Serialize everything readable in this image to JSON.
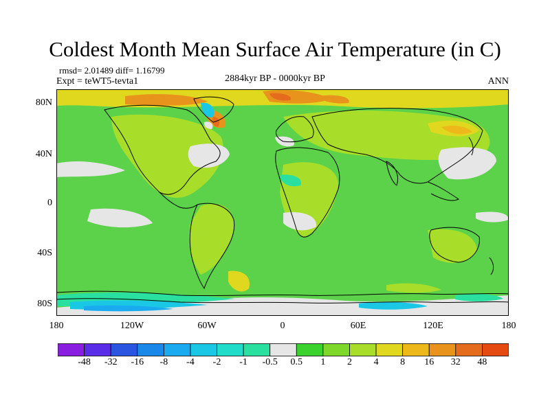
{
  "title": "Coldest Month Mean Surface Air Temperature (in C)",
  "stats_line": "rmsd= 2.01489 diff= 1.16799",
  "expt_line": "Expt = teWT5-tevta1",
  "period": "2884kyr BP - 0000kyr BP",
  "season": "ANN",
  "y_axis_labels": [
    "80N",
    "40N",
    "0",
    "40S",
    "80S"
  ],
  "x_axis_labels": [
    "180",
    "120W",
    "60W",
    "0",
    "60E",
    "120E",
    "180"
  ],
  "colorbar": {
    "colors": [
      "#8a1ee0",
      "#5a2ee8",
      "#2a55e0",
      "#1a88e8",
      "#1aaaf0",
      "#1ac8e6",
      "#20dcc8",
      "#2ae0a0",
      "#e6e6e6",
      "#3cd22e",
      "#7ed82a",
      "#a8de2a",
      "#dfd81e",
      "#ecb81a",
      "#e8941c",
      "#e46c1c",
      "#e44a12"
    ],
    "labels": [
      "-48",
      "-32",
      "-16",
      "-8",
      "-4",
      "-2",
      "-1",
      "-0.5",
      "0.5",
      "1",
      "2",
      "4",
      "8",
      "16",
      "32",
      "48"
    ]
  },
  "map_colors": {
    "ocean_base": "#5cd24a",
    "neutral": "#e6e6e6",
    "warm_light": "#a8de2a",
    "warm_mid": "#dfd81e",
    "warm_orange": "#ecb81a",
    "warm_strong": "#e8941c",
    "warm_red": "#e46c1c",
    "cool_aqua": "#2ae0a0",
    "cool_cyan": "#1ac8e6",
    "cool_blue": "#1aaaf0",
    "coast": "#000000"
  }
}
